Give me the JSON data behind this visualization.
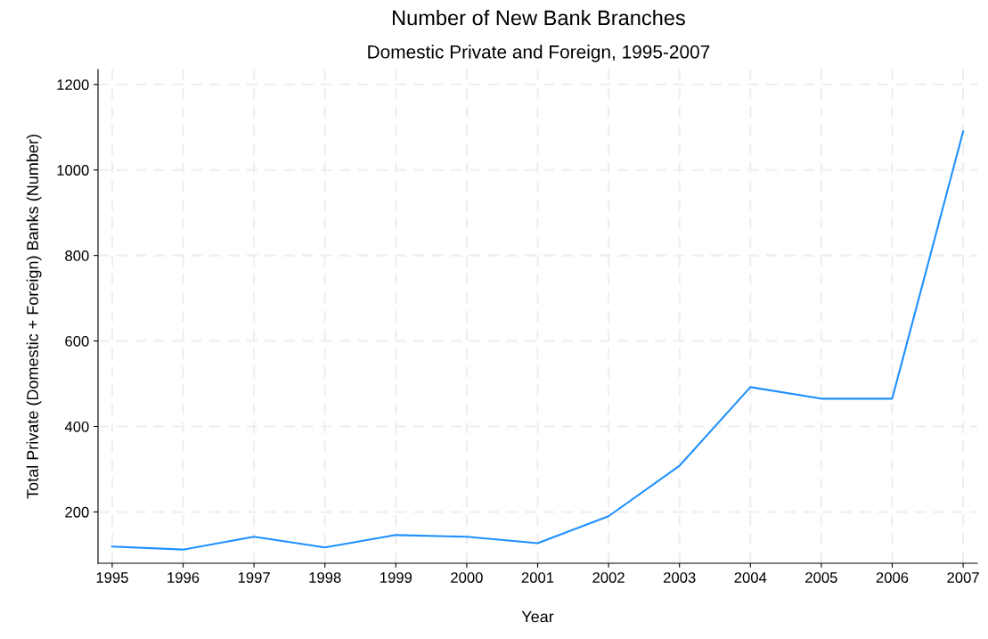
{
  "chart_data": {
    "type": "line",
    "title": "Number of New Bank Branches",
    "subtitle": "Domestic Private and Foreign, 1995-2007",
    "xlabel": "Year",
    "ylabel": "Total Private (Domestic + Foreign) Banks (Number)",
    "x": [
      1995,
      1996,
      1997,
      1998,
      1999,
      2000,
      2001,
      2002,
      2003,
      2004,
      2005,
      2006,
      2007
    ],
    "series": [
      {
        "color": "#1e90ff",
        "values": [
          119,
          112,
          142,
          117,
          146,
          142,
          127,
          190,
          308,
          492,
          465,
          465,
          1090
        ]
      }
    ],
    "xlim": [
      1994.8,
      2007.2
    ],
    "ylim": [
      80,
      1235
    ],
    "xticks": [
      1995,
      1996,
      1997,
      1998,
      1999,
      2000,
      2001,
      2002,
      2003,
      2004,
      2005,
      2006,
      2007
    ],
    "yticks": [
      200,
      400,
      600,
      800,
      1000,
      1200
    ],
    "grid": true,
    "marker": "none",
    "line_style": "solid"
  }
}
